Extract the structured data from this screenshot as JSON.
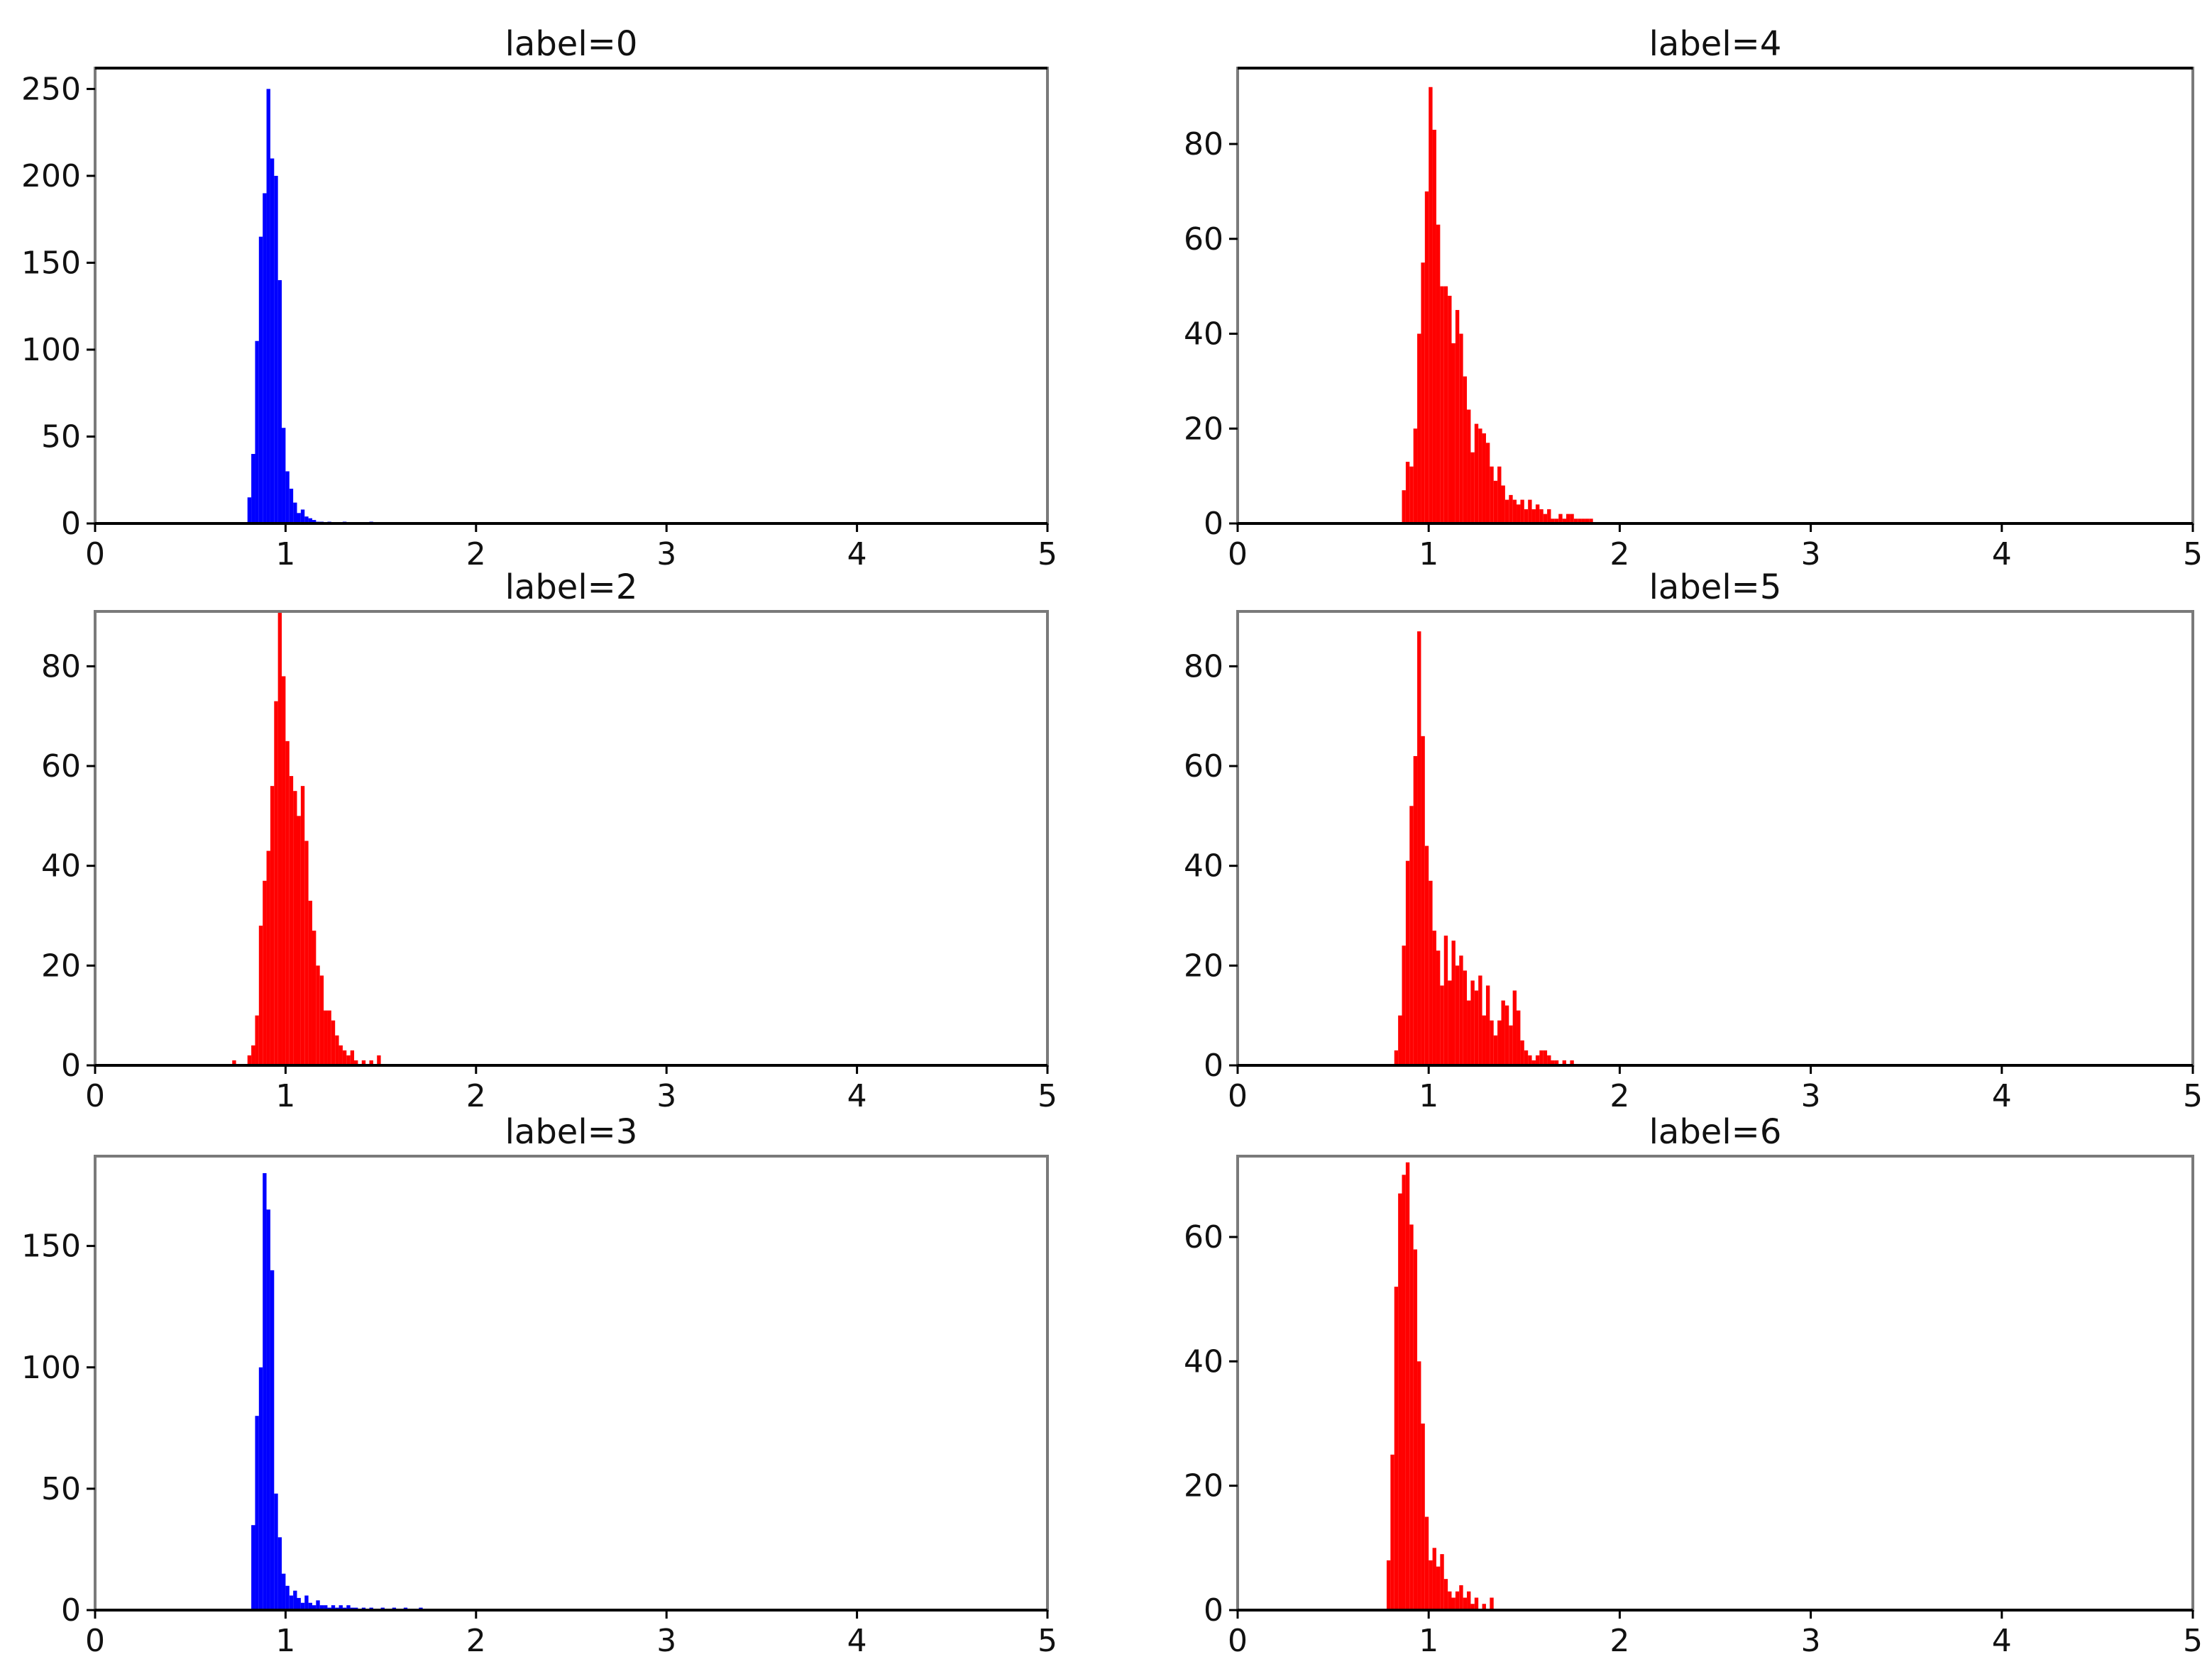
{
  "chart_data": [
    {
      "type": "bar",
      "title": "label=0",
      "color": "#0000ff",
      "xlim": [
        0,
        5
      ],
      "ylim": [
        0,
        262
      ],
      "xticks": [
        "0",
        "1",
        "2",
        "3",
        "4",
        "5"
      ],
      "yticks": [
        "0",
        "50",
        "100",
        "150",
        "200",
        "250"
      ],
      "bin_width": 0.02,
      "bins": [
        [
          0.8,
          15
        ],
        [
          0.82,
          40
        ],
        [
          0.84,
          105
        ],
        [
          0.86,
          165
        ],
        [
          0.88,
          190
        ],
        [
          0.9,
          250
        ],
        [
          0.92,
          210
        ],
        [
          0.94,
          200
        ],
        [
          0.96,
          140
        ],
        [
          0.98,
          55
        ],
        [
          1.0,
          30
        ],
        [
          1.02,
          20
        ],
        [
          1.04,
          12
        ],
        [
          1.06,
          6
        ],
        [
          1.08,
          8
        ],
        [
          1.1,
          4
        ],
        [
          1.12,
          3
        ],
        [
          1.14,
          2
        ],
        [
          1.16,
          1
        ],
        [
          1.18,
          1
        ],
        [
          1.22,
          1
        ],
        [
          1.3,
          1
        ],
        [
          1.44,
          1
        ]
      ]
    },
    {
      "type": "bar",
      "title": "label=4",
      "color": "#ff0000",
      "xlim": [
        0,
        5
      ],
      "ylim": [
        0,
        96
      ],
      "xticks": [
        "0",
        "1",
        "2",
        "3",
        "4",
        "5"
      ],
      "yticks": [
        "0",
        "20",
        "40",
        "60",
        "80"
      ],
      "bin_width": 0.02,
      "bins": [
        [
          0.86,
          7
        ],
        [
          0.88,
          13
        ],
        [
          0.9,
          12
        ],
        [
          0.92,
          20
        ],
        [
          0.94,
          40
        ],
        [
          0.96,
          55
        ],
        [
          0.98,
          70
        ],
        [
          1.0,
          92
        ],
        [
          1.02,
          83
        ],
        [
          1.04,
          63
        ],
        [
          1.06,
          50
        ],
        [
          1.08,
          50
        ],
        [
          1.1,
          48
        ],
        [
          1.12,
          38
        ],
        [
          1.14,
          45
        ],
        [
          1.16,
          40
        ],
        [
          1.18,
          31
        ],
        [
          1.2,
          24
        ],
        [
          1.22,
          15
        ],
        [
          1.24,
          21
        ],
        [
          1.26,
          20
        ],
        [
          1.28,
          19
        ],
        [
          1.3,
          17
        ],
        [
          1.32,
          12
        ],
        [
          1.34,
          9
        ],
        [
          1.36,
          12
        ],
        [
          1.38,
          8
        ],
        [
          1.4,
          5
        ],
        [
          1.42,
          6
        ],
        [
          1.44,
          5
        ],
        [
          1.46,
          4
        ],
        [
          1.48,
          5
        ],
        [
          1.5,
          3
        ],
        [
          1.52,
          5
        ],
        [
          1.54,
          3
        ],
        [
          1.56,
          4
        ],
        [
          1.58,
          3
        ],
        [
          1.6,
          2
        ],
        [
          1.62,
          3
        ],
        [
          1.64,
          1
        ],
        [
          1.66,
          1
        ],
        [
          1.68,
          2
        ],
        [
          1.7,
          1
        ],
        [
          1.72,
          2
        ],
        [
          1.74,
          2
        ],
        [
          1.76,
          1
        ],
        [
          1.78,
          1
        ],
        [
          1.8,
          1
        ],
        [
          1.82,
          1
        ],
        [
          1.84,
          1
        ]
      ]
    },
    {
      "type": "bar",
      "title": "label=2",
      "color": "#ff0000",
      "xlim": [
        0,
        5
      ],
      "ylim": [
        0,
        91
      ],
      "xticks": [
        "0",
        "1",
        "2",
        "3",
        "4",
        "5"
      ],
      "yticks": [
        "0",
        "20",
        "40",
        "60",
        "80"
      ],
      "bin_width": 0.02,
      "bins": [
        [
          0.72,
          1
        ],
        [
          0.8,
          2
        ],
        [
          0.82,
          4
        ],
        [
          0.84,
          10
        ],
        [
          0.86,
          28
        ],
        [
          0.88,
          37
        ],
        [
          0.9,
          43
        ],
        [
          0.92,
          56
        ],
        [
          0.94,
          73
        ],
        [
          0.96,
          91
        ],
        [
          0.98,
          78
        ],
        [
          1.0,
          65
        ],
        [
          1.02,
          58
        ],
        [
          1.04,
          55
        ],
        [
          1.06,
          50
        ],
        [
          1.08,
          56
        ],
        [
          1.1,
          45
        ],
        [
          1.12,
          33
        ],
        [
          1.14,
          27
        ],
        [
          1.16,
          20
        ],
        [
          1.18,
          18
        ],
        [
          1.2,
          11
        ],
        [
          1.22,
          11
        ],
        [
          1.24,
          9
        ],
        [
          1.26,
          6
        ],
        [
          1.28,
          4
        ],
        [
          1.3,
          3
        ],
        [
          1.32,
          2
        ],
        [
          1.34,
          3
        ],
        [
          1.36,
          1
        ],
        [
          1.4,
          1
        ],
        [
          1.44,
          1
        ],
        [
          1.48,
          2
        ]
      ]
    },
    {
      "type": "bar",
      "title": "label=5",
      "color": "#ff0000",
      "xlim": [
        0,
        5
      ],
      "ylim": [
        0,
        91
      ],
      "xticks": [
        "0",
        "1",
        "2",
        "3",
        "4",
        "5"
      ],
      "yticks": [
        "0",
        "20",
        "40",
        "60",
        "80"
      ],
      "bin_width": 0.02,
      "bins": [
        [
          0.82,
          3
        ],
        [
          0.84,
          10
        ],
        [
          0.86,
          24
        ],
        [
          0.88,
          41
        ],
        [
          0.9,
          52
        ],
        [
          0.92,
          62
        ],
        [
          0.94,
          87
        ],
        [
          0.96,
          66
        ],
        [
          0.98,
          44
        ],
        [
          1.0,
          37
        ],
        [
          1.02,
          27
        ],
        [
          1.04,
          23
        ],
        [
          1.06,
          16
        ],
        [
          1.08,
          26
        ],
        [
          1.1,
          17
        ],
        [
          1.12,
          25
        ],
        [
          1.14,
          20
        ],
        [
          1.16,
          22
        ],
        [
          1.18,
          19
        ],
        [
          1.2,
          13
        ],
        [
          1.22,
          17
        ],
        [
          1.24,
          15
        ],
        [
          1.26,
          18
        ],
        [
          1.28,
          10
        ],
        [
          1.3,
          16
        ],
        [
          1.32,
          9
        ],
        [
          1.34,
          6
        ],
        [
          1.36,
          9
        ],
        [
          1.38,
          13
        ],
        [
          1.4,
          12
        ],
        [
          1.42,
          8
        ],
        [
          1.44,
          15
        ],
        [
          1.46,
          11
        ],
        [
          1.48,
          5
        ],
        [
          1.5,
          3
        ],
        [
          1.52,
          2
        ],
        [
          1.54,
          1
        ],
        [
          1.56,
          2
        ],
        [
          1.58,
          3
        ],
        [
          1.6,
          3
        ],
        [
          1.62,
          2
        ],
        [
          1.64,
          1
        ],
        [
          1.66,
          1
        ],
        [
          1.7,
          1
        ],
        [
          1.74,
          1
        ]
      ]
    },
    {
      "type": "bar",
      "title": "label=3",
      "color": "#0000ff",
      "xlim": [
        0,
        5
      ],
      "ylim": [
        0,
        187
      ],
      "xticks": [
        "0",
        "1",
        "2",
        "3",
        "4",
        "5"
      ],
      "yticks": [
        "0",
        "50",
        "100",
        "150"
      ],
      "bin_width": 0.02,
      "bins": [
        [
          0.82,
          35
        ],
        [
          0.84,
          80
        ],
        [
          0.86,
          100
        ],
        [
          0.88,
          180
        ],
        [
          0.9,
          165
        ],
        [
          0.92,
          140
        ],
        [
          0.94,
          48
        ],
        [
          0.96,
          30
        ],
        [
          0.98,
          15
        ],
        [
          1.0,
          10
        ],
        [
          1.02,
          6
        ],
        [
          1.04,
          8
        ],
        [
          1.06,
          5
        ],
        [
          1.08,
          3
        ],
        [
          1.1,
          6
        ],
        [
          1.12,
          3
        ],
        [
          1.14,
          2
        ],
        [
          1.16,
          4
        ],
        [
          1.18,
          2
        ],
        [
          1.2,
          2
        ],
        [
          1.22,
          1
        ],
        [
          1.24,
          2
        ],
        [
          1.26,
          1
        ],
        [
          1.28,
          2
        ],
        [
          1.3,
          1
        ],
        [
          1.32,
          2
        ],
        [
          1.34,
          1
        ],
        [
          1.36,
          1
        ],
        [
          1.4,
          1
        ],
        [
          1.44,
          1
        ],
        [
          1.5,
          1
        ],
        [
          1.56,
          1
        ],
        [
          1.62,
          1
        ],
        [
          1.7,
          1
        ]
      ]
    },
    {
      "type": "bar",
      "title": "label=6",
      "color": "#ff0000",
      "xlim": [
        0,
        5
      ],
      "ylim": [
        0,
        73
      ],
      "xticks": [
        "0",
        "1",
        "2",
        "3",
        "4",
        "5"
      ],
      "yticks": [
        "0",
        "20",
        "40",
        "60"
      ],
      "bin_width": 0.02,
      "bins": [
        [
          0.78,
          8
        ],
        [
          0.8,
          25
        ],
        [
          0.82,
          52
        ],
        [
          0.84,
          67
        ],
        [
          0.86,
          70
        ],
        [
          0.88,
          72
        ],
        [
          0.9,
          62
        ],
        [
          0.92,
          58
        ],
        [
          0.94,
          40
        ],
        [
          0.96,
          30
        ],
        [
          0.98,
          15
        ],
        [
          1.0,
          8
        ],
        [
          1.02,
          10
        ],
        [
          1.04,
          7
        ],
        [
          1.06,
          9
        ],
        [
          1.08,
          5
        ],
        [
          1.1,
          3
        ],
        [
          1.12,
          2
        ],
        [
          1.14,
          3
        ],
        [
          1.16,
          4
        ],
        [
          1.18,
          2
        ],
        [
          1.2,
          3
        ],
        [
          1.22,
          1
        ],
        [
          1.24,
          2
        ],
        [
          1.28,
          1
        ],
        [
          1.32,
          2
        ]
      ]
    }
  ]
}
